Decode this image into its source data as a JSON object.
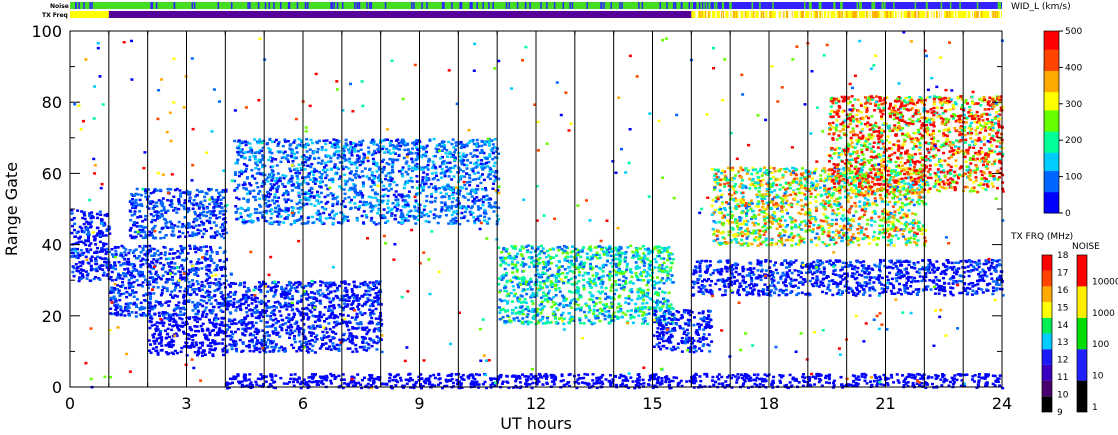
{
  "chart_data": {
    "type": "heatmap",
    "xlabel": "UT hours",
    "ylabel": "Range Gate",
    "xlim": [
      0,
      24
    ],
    "ylim": [
      0,
      100
    ],
    "x_ticks": [
      0,
      3,
      6,
      9,
      12,
      15,
      18,
      21,
      24
    ],
    "y_ticks": [
      0,
      20,
      40,
      60,
      80,
      100
    ],
    "vertical_lines_x": [
      1,
      2,
      3,
      4,
      5,
      6,
      7,
      8,
      9,
      10,
      11,
      12,
      13,
      14,
      15,
      16,
      17,
      18,
      19,
      20,
      21,
      22,
      23
    ],
    "parameter_label": "WID_L (km/s)",
    "parameter_range": [
      0,
      500
    ],
    "parameter_ticks": [
      0,
      100,
      200,
      300,
      400,
      500
    ],
    "strip_labels": {
      "noise": "Noise",
      "tx_freq": "TX Freq"
    },
    "tx_freq_label": "TX FRQ (MHz)",
    "tx_freq_ticks": [
      9,
      10,
      11,
      12,
      13,
      14,
      15,
      16,
      17,
      18
    ],
    "noise_label": "NOISE",
    "noise_ticks": [
      "1",
      "10",
      "100",
      "1000",
      "10000"
    ],
    "echo_regions": [
      {
        "x": [
          0.0,
          1.0
        ],
        "y": [
          30,
          50
        ],
        "value": 40
      },
      {
        "x": [
          1.0,
          4.0
        ],
        "y": [
          20,
          40
        ],
        "value": 50
      },
      {
        "x": [
          1.5,
          4.0
        ],
        "y": [
          42,
          56
        ],
        "value": 60
      },
      {
        "x": [
          2.0,
          4.0
        ],
        "y": [
          9,
          20
        ],
        "value": 30
      },
      {
        "x": [
          4.0,
          8.0
        ],
        "y": [
          10,
          30
        ],
        "value": 40
      },
      {
        "x": [
          4.2,
          11.0
        ],
        "y": [
          46,
          70
        ],
        "value": 80
      },
      {
        "x": [
          4.0,
          24.0
        ],
        "y": [
          0,
          4
        ],
        "value": 30
      },
      {
        "x": [
          11.0,
          15.5
        ],
        "y": [
          18,
          40
        ],
        "value": 150
      },
      {
        "x": [
          15.0,
          16.5
        ],
        "y": [
          10,
          22
        ],
        "value": 40
      },
      {
        "x": [
          16.0,
          24.0
        ],
        "y": [
          26,
          36
        ],
        "value": 40
      },
      {
        "x": [
          16.5,
          22.0
        ],
        "y": [
          40,
          62
        ],
        "value": 250
      },
      {
        "x": [
          19.5,
          24.0
        ],
        "y": [
          55,
          82
        ],
        "value": 350
      }
    ]
  },
  "colors": {
    "wid_scale": [
      "#0000ff",
      "#0066ff",
      "#00ccff",
      "#00ff99",
      "#66ff00",
      "#ffff00",
      "#ffaa00",
      "#ff4400",
      "#ff0000"
    ],
    "tx_scale": [
      "#000000",
      "#4b0070",
      "#3a00c0",
      "#1a1aff",
      "#00ccff",
      "#00ee55",
      "#ffff00",
      "#ffaa00",
      "#ff4400",
      "#ff0000"
    ],
    "noise_scale": [
      "#000000",
      "#2020ff",
      "#00dd00",
      "#ffee00",
      "#ff0000"
    ],
    "noise_strip": "#44dd22",
    "noise_strip_late": "#3322ff",
    "tx_strip_early": "#ffff00",
    "tx_strip_mid": "#550099",
    "tx_strip_late": "#ffff00"
  }
}
